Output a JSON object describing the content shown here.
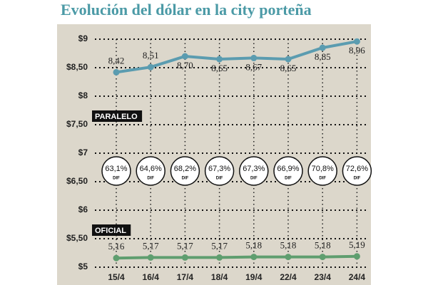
{
  "chart_data": {
    "type": "line",
    "title": "Evolución del dólar en la city porteña",
    "categories": [
      "15/4",
      "16/4",
      "17/4",
      "18/4",
      "19/4",
      "22/4",
      "23/4",
      "24/4"
    ],
    "ylim": [
      5,
      9
    ],
    "yticks": [
      {
        "value": 5,
        "label": "$5"
      },
      {
        "value": 5.5,
        "label": "$5,50"
      },
      {
        "value": 6,
        "label": "$6"
      },
      {
        "value": 6.5,
        "label": "$6,50"
      },
      {
        "value": 7,
        "label": "$7"
      },
      {
        "value": 7.5,
        "label": "$7,50"
      },
      {
        "value": 8,
        "label": "$8"
      },
      {
        "value": 8.5,
        "label": "$8,50"
      },
      {
        "value": 9,
        "label": "$9"
      }
    ],
    "grid": true,
    "series": [
      {
        "name": "PARALELO",
        "color": "#5b9cb0",
        "values": [
          8.42,
          8.51,
          8.7,
          8.65,
          8.67,
          8.65,
          8.85,
          8.96
        ],
        "value_labels": [
          "8,42",
          "8,51",
          "8,70",
          "8,65",
          "8,67",
          "8,65",
          "8,85",
          "8,96"
        ]
      },
      {
        "name": "OFICIAL",
        "color": "#5f9e6f",
        "values": [
          5.16,
          5.17,
          5.17,
          5.17,
          5.18,
          5.18,
          5.18,
          5.19
        ],
        "value_labels": [
          "5,16",
          "5,17",
          "5,17",
          "5,17",
          "5,18",
          "5,18",
          "5,18",
          "5,19"
        ]
      }
    ],
    "differences": {
      "label": "DIF",
      "values": [
        63.1,
        64.6,
        68.2,
        67.3,
        67.3,
        66.9,
        70.8,
        72.6
      ],
      "value_labels": [
        "63,1%",
        "64,6%",
        "68,2%",
        "67,3%",
        "67,3%",
        "66,9%",
        "70,8%",
        "72,6%"
      ]
    }
  }
}
